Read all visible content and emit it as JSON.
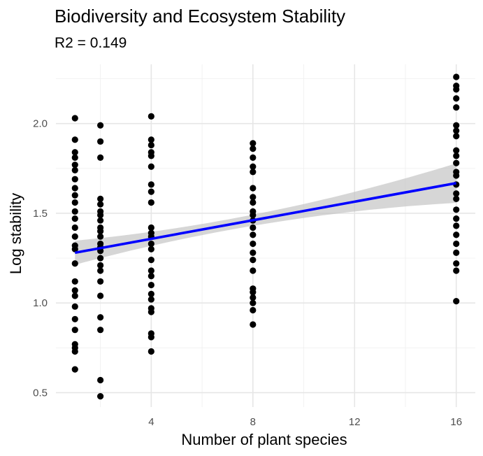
{
  "chart_data": {
    "type": "scatter",
    "title": "Biodiversity and Ecosystem Stability",
    "subtitle": "R2 = 0.149",
    "xlabel": "Number of plant species",
    "ylabel": "Log stability",
    "xlim": [
      0.25,
      16.75
    ],
    "ylim": [
      0.42,
      2.33
    ],
    "x_ticks": [
      4,
      8,
      12,
      16
    ],
    "x_tick_labels": [
      "4",
      "8",
      "12",
      "16"
    ],
    "y_ticks": [
      0.5,
      1.0,
      1.5,
      2.0
    ],
    "y_tick_labels": [
      "0.5",
      "1.0",
      "1.5",
      "2.0"
    ],
    "grid": true,
    "points": [
      {
        "x": 1,
        "y": 2.03
      },
      {
        "x": 1,
        "y": 1.91
      },
      {
        "x": 1,
        "y": 1.84
      },
      {
        "x": 1,
        "y": 1.81
      },
      {
        "x": 1,
        "y": 1.77
      },
      {
        "x": 1,
        "y": 1.74
      },
      {
        "x": 1,
        "y": 1.69
      },
      {
        "x": 1,
        "y": 1.64
      },
      {
        "x": 1,
        "y": 1.6
      },
      {
        "x": 1,
        "y": 1.56
      },
      {
        "x": 1,
        "y": 1.51
      },
      {
        "x": 1,
        "y": 1.47
      },
      {
        "x": 1,
        "y": 1.42
      },
      {
        "x": 1,
        "y": 1.37
      },
      {
        "x": 1,
        "y": 1.32
      },
      {
        "x": 1,
        "y": 1.3
      },
      {
        "x": 1,
        "y": 1.22
      },
      {
        "x": 1,
        "y": 1.12
      },
      {
        "x": 1,
        "y": 1.07
      },
      {
        "x": 1,
        "y": 1.04
      },
      {
        "x": 1,
        "y": 0.98
      },
      {
        "x": 1,
        "y": 0.91
      },
      {
        "x": 1,
        "y": 0.85
      },
      {
        "x": 1,
        "y": 0.77
      },
      {
        "x": 1,
        "y": 0.75
      },
      {
        "x": 1,
        "y": 0.73
      },
      {
        "x": 1,
        "y": 0.63
      },
      {
        "x": 2,
        "y": 1.99
      },
      {
        "x": 2,
        "y": 1.9
      },
      {
        "x": 2,
        "y": 1.81
      },
      {
        "x": 2,
        "y": 1.58
      },
      {
        "x": 2,
        "y": 1.55
      },
      {
        "x": 2,
        "y": 1.51
      },
      {
        "x": 2,
        "y": 1.49
      },
      {
        "x": 2,
        "y": 1.46
      },
      {
        "x": 2,
        "y": 1.42
      },
      {
        "x": 2,
        "y": 1.4
      },
      {
        "x": 2,
        "y": 1.37
      },
      {
        "x": 2,
        "y": 1.33
      },
      {
        "x": 2,
        "y": 1.31
      },
      {
        "x": 2,
        "y": 1.29
      },
      {
        "x": 2,
        "y": 1.25
      },
      {
        "x": 2,
        "y": 1.21
      },
      {
        "x": 2,
        "y": 1.18
      },
      {
        "x": 2,
        "y": 1.12
      },
      {
        "x": 2,
        "y": 1.04
      },
      {
        "x": 2,
        "y": 0.92
      },
      {
        "x": 2,
        "y": 0.85
      },
      {
        "x": 2,
        "y": 0.57
      },
      {
        "x": 2,
        "y": 0.48
      },
      {
        "x": 4,
        "y": 2.04
      },
      {
        "x": 4,
        "y": 1.91
      },
      {
        "x": 4,
        "y": 1.88
      },
      {
        "x": 4,
        "y": 1.84
      },
      {
        "x": 4,
        "y": 1.82
      },
      {
        "x": 4,
        "y": 1.76
      },
      {
        "x": 4,
        "y": 1.66
      },
      {
        "x": 4,
        "y": 1.62
      },
      {
        "x": 4,
        "y": 1.56
      },
      {
        "x": 4,
        "y": 1.42
      },
      {
        "x": 4,
        "y": 1.39
      },
      {
        "x": 4,
        "y": 1.37
      },
      {
        "x": 4,
        "y": 1.33
      },
      {
        "x": 4,
        "y": 1.3
      },
      {
        "x": 4,
        "y": 1.24
      },
      {
        "x": 4,
        "y": 1.18
      },
      {
        "x": 4,
        "y": 1.15
      },
      {
        "x": 4,
        "y": 1.1
      },
      {
        "x": 4,
        "y": 1.05
      },
      {
        "x": 4,
        "y": 1.02
      },
      {
        "x": 4,
        "y": 0.97
      },
      {
        "x": 4,
        "y": 0.95
      },
      {
        "x": 4,
        "y": 0.83
      },
      {
        "x": 4,
        "y": 0.81
      },
      {
        "x": 4,
        "y": 0.73
      },
      {
        "x": 8,
        "y": 1.89
      },
      {
        "x": 8,
        "y": 1.86
      },
      {
        "x": 8,
        "y": 1.81
      },
      {
        "x": 8,
        "y": 1.76
      },
      {
        "x": 8,
        "y": 1.73
      },
      {
        "x": 8,
        "y": 1.64
      },
      {
        "x": 8,
        "y": 1.59
      },
      {
        "x": 8,
        "y": 1.56
      },
      {
        "x": 8,
        "y": 1.51
      },
      {
        "x": 8,
        "y": 1.49
      },
      {
        "x": 8,
        "y": 1.46
      },
      {
        "x": 8,
        "y": 1.42
      },
      {
        "x": 8,
        "y": 1.38
      },
      {
        "x": 8,
        "y": 1.33
      },
      {
        "x": 8,
        "y": 1.28
      },
      {
        "x": 8,
        "y": 1.24
      },
      {
        "x": 8,
        "y": 1.18
      },
      {
        "x": 8,
        "y": 1.08
      },
      {
        "x": 8,
        "y": 1.06
      },
      {
        "x": 8,
        "y": 1.03
      },
      {
        "x": 8,
        "y": 1.0
      },
      {
        "x": 8,
        "y": 0.96
      },
      {
        "x": 8,
        "y": 0.88
      },
      {
        "x": 16,
        "y": 2.26
      },
      {
        "x": 16,
        "y": 2.21
      },
      {
        "x": 16,
        "y": 2.19
      },
      {
        "x": 16,
        "y": 2.14
      },
      {
        "x": 16,
        "y": 2.09
      },
      {
        "x": 16,
        "y": 1.99
      },
      {
        "x": 16,
        "y": 1.96
      },
      {
        "x": 16,
        "y": 1.93
      },
      {
        "x": 16,
        "y": 1.85
      },
      {
        "x": 16,
        "y": 1.82
      },
      {
        "x": 16,
        "y": 1.78
      },
      {
        "x": 16,
        "y": 1.73
      },
      {
        "x": 16,
        "y": 1.71
      },
      {
        "x": 16,
        "y": 1.66
      },
      {
        "x": 16,
        "y": 1.61
      },
      {
        "x": 16,
        "y": 1.58
      },
      {
        "x": 16,
        "y": 1.52
      },
      {
        "x": 16,
        "y": 1.47
      },
      {
        "x": 16,
        "y": 1.43
      },
      {
        "x": 16,
        "y": 1.38
      },
      {
        "x": 16,
        "y": 1.33
      },
      {
        "x": 16,
        "y": 1.28
      },
      {
        "x": 16,
        "y": 1.22
      },
      {
        "x": 16,
        "y": 1.18
      },
      {
        "x": 16,
        "y": 1.01
      }
    ],
    "trend_line": {
      "x_start": 1,
      "y_start": 1.28,
      "x_end": 16,
      "y_end": 1.668,
      "ci_half_width_start": 0.067,
      "ci_half_width_mid": 0.03,
      "ci_half_width_end": 0.11,
      "x_mid": 7.0
    },
    "colors": {
      "points": "#000000",
      "trend_line": "#0000ff",
      "ci_band": "#bdbdbd",
      "grid": "#e6e6e6"
    }
  }
}
